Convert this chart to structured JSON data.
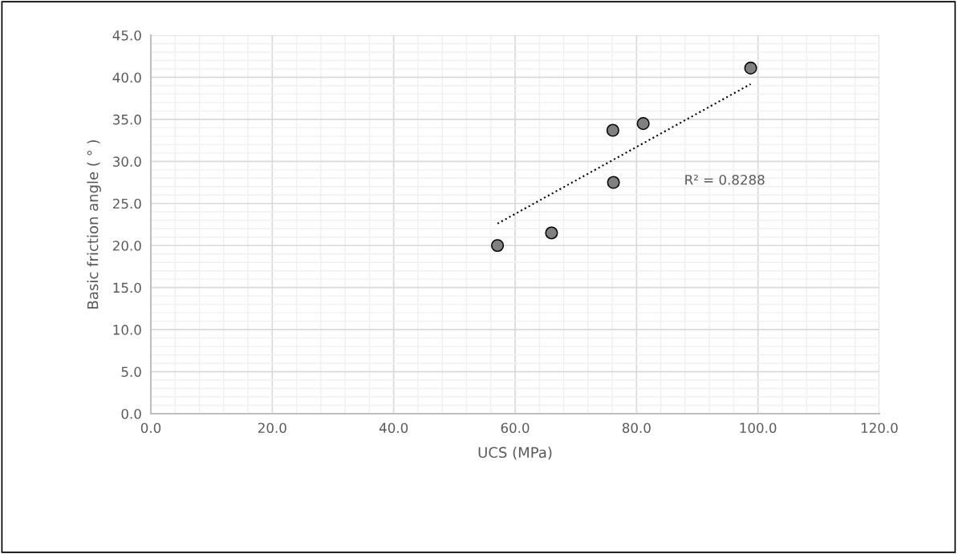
{
  "chart_data": {
    "type": "scatter",
    "xlabel": "UCS (MPa)",
    "ylabel": "Basic friction angle ( ° )",
    "series": [
      {
        "color": "#808080",
        "marker": "circle",
        "x": [
          57.1,
          66.0,
          76.1,
          76.2,
          81.1,
          98.8
        ],
        "values": [
          20.0,
          21.5,
          33.7,
          27.5,
          34.5,
          41.1
        ]
      },
      {
        "type": "line",
        "color": "#000000",
        "line_style": "dotted",
        "marker": "none",
        "x": [
          57.1,
          98.8
        ],
        "values": [
          22.6,
          39.2
        ]
      }
    ],
    "annotations": [
      "R² = 0.8288"
    ],
    "xlim": [
      0,
      120
    ],
    "xticks": [
      {
        "value": 0,
        "label": "0.0"
      },
      {
        "value": 20,
        "label": "20.0"
      },
      {
        "value": 40,
        "label": "40.0"
      },
      {
        "value": 60,
        "label": "60.0"
      },
      {
        "value": 80,
        "label": "80.0"
      },
      {
        "value": 100,
        "label": "100.0"
      },
      {
        "value": 120,
        "label": "120.0"
      }
    ],
    "ylim": [
      0,
      45
    ],
    "yticks": [
      {
        "value": 0,
        "label": "0.0"
      },
      {
        "value": 5,
        "label": "5.0"
      },
      {
        "value": 10,
        "label": "10.0"
      },
      {
        "value": 15,
        "label": "15.0"
      },
      {
        "value": 20,
        "label": "20.0"
      },
      {
        "value": 25,
        "label": "25.0"
      },
      {
        "value": 30,
        "label": "30.0"
      },
      {
        "value": 35,
        "label": "35.0"
      },
      {
        "value": 40,
        "label": "40.0"
      },
      {
        "value": 45,
        "label": "45.0"
      }
    ],
    "grid": true,
    "legend": false
  }
}
